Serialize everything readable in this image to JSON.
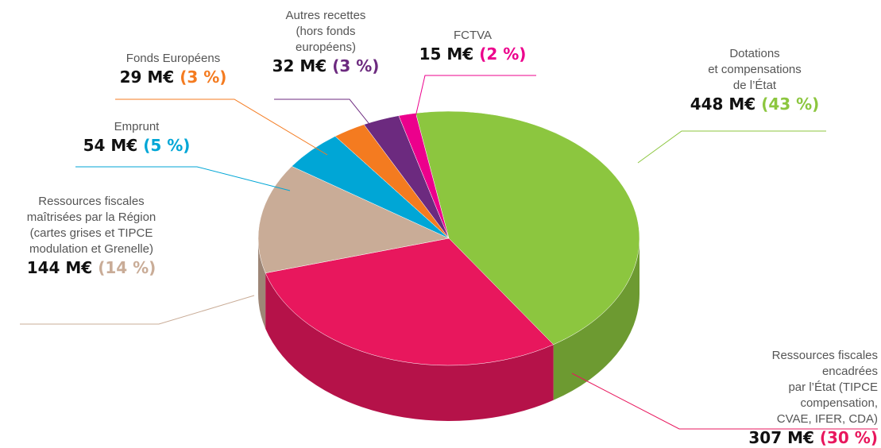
{
  "chart_data": {
    "type": "pie",
    "categories": [
      "Dotations\net compensations\nde l’État",
      "Ressources fiscales encadrées\npar l’État (TIPCE compensation,\nCVAE, IFER, CDA)",
      "Ressources fiscales\nmaîtrisées par la Région\n(cartes grises et TIPCE\nmodulation et Grenelle)",
      "Emprunt",
      "Fonds Européens",
      "Autres recettes\n(hors fonds\neuropéens)",
      "FCTVA"
    ],
    "values": [
      448,
      307,
      144,
      54,
      29,
      32,
      15
    ],
    "value_labels": [
      "448 M€",
      "307 M€",
      "144 M€",
      "54 M€",
      "29 M€",
      "32 M€",
      "15 M€"
    ],
    "percents": [
      43,
      30,
      14,
      5,
      3,
      3,
      2
    ],
    "percent_labels": [
      "(43 %)",
      "(30 %)",
      "(14 %)",
      "(5 %)",
      "(3 %)",
      "(3 %)",
      "(2 %)"
    ],
    "colors": [
      "#8cc63f",
      "#e8175d",
      "#c9ac97",
      "#00a6d6",
      "#f47b20",
      "#6c2a7f",
      "#ec008c"
    ]
  }
}
